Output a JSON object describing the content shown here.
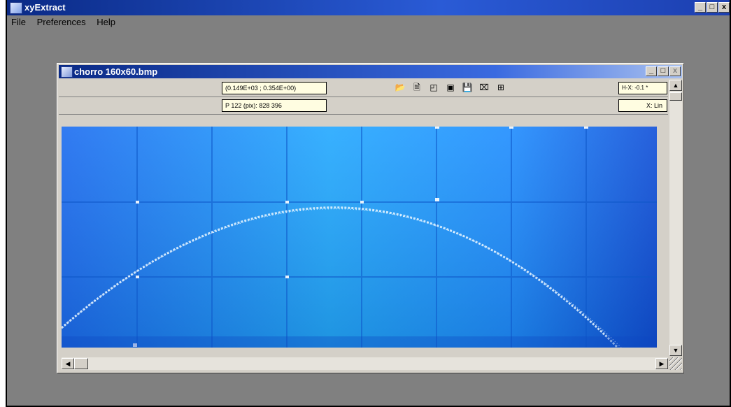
{
  "app": {
    "title": "xyExtract",
    "menu": [
      "File",
      "Preferences",
      "Help"
    ],
    "window_buttons": [
      "_",
      "□",
      "x"
    ]
  },
  "doc": {
    "title": "chorro 160x60.bmp",
    "coord_readout": "(0.149E+03 ; 0.354E+00)",
    "point_readout": "P 122 (pix):  828  396",
    "hx_readout": "H-X: -0.1 *",
    "x_scale": "X: Lin",
    "tool_icons": [
      "open-folder-icon",
      "new-page-icon",
      "calibrate-icon",
      "zoom-icon",
      "save-disk-icon",
      "clear-points-icon",
      "grid-icon"
    ]
  },
  "colors": {
    "titlebar": "#0a2a86",
    "canvas_blue": "#1a78ff",
    "field_bg": "#fffde1",
    "window_gray": "#d4d0c8",
    "desktop_gray": "#808080"
  }
}
